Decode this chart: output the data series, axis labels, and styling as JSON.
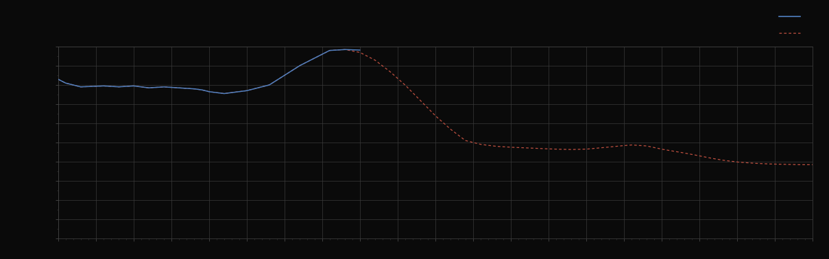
{
  "background_color": "#0a0a0a",
  "plot_bg_color": "#0a0a0a",
  "grid_color": "#3a3a3a",
  "line1_color": "#5080c0",
  "line2_color": "#c05040",
  "figsize": [
    12.09,
    3.78
  ],
  "dpi": 100,
  "xlim": [
    0,
    100
  ],
  "ylim": [
    0,
    10
  ],
  "grid_major_x": 5,
  "grid_major_y": 1,
  "n_xcells": 20,
  "n_ycells": 10
}
